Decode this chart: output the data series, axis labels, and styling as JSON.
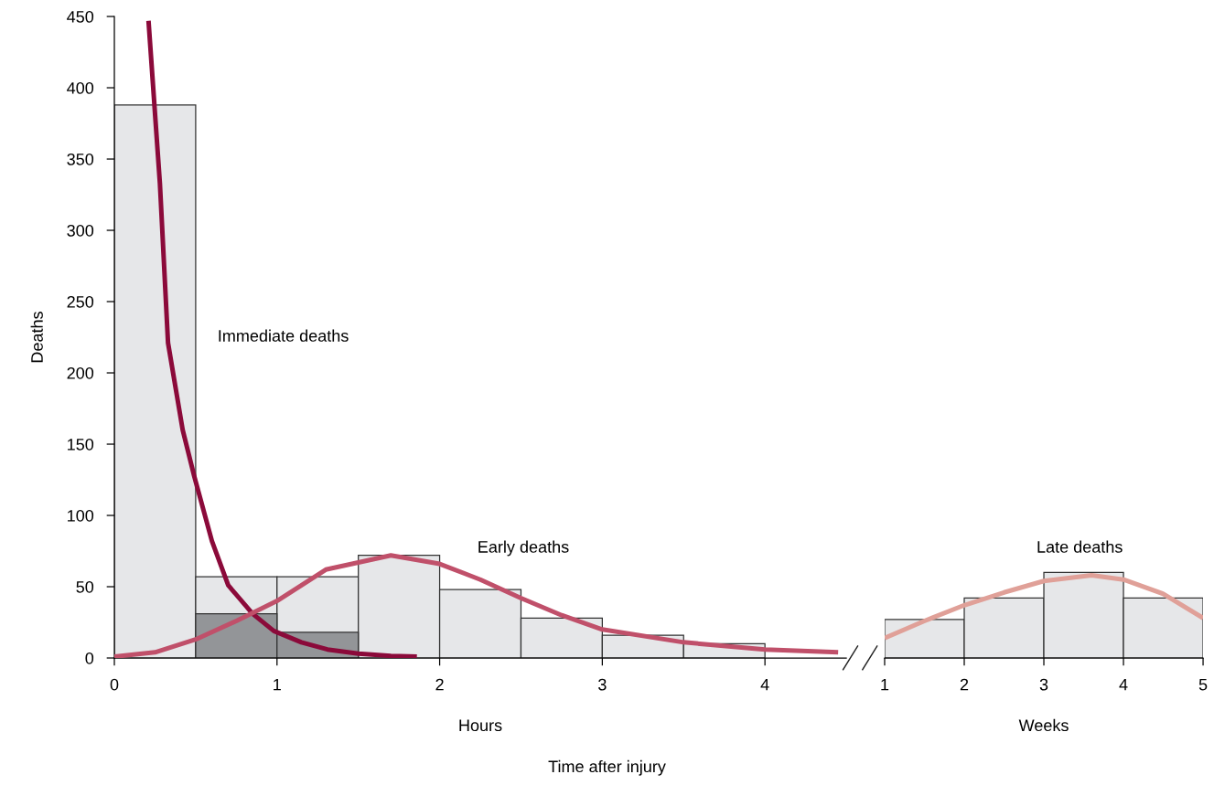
{
  "chart_data": [
    {
      "type": "histogram",
      "xlabel": "Hours",
      "ylabel": "Deaths",
      "bins": [
        0,
        0.5,
        1,
        1.5,
        2,
        2.5,
        3,
        3.5,
        4
      ],
      "series": [
        {
          "color": "#e6e7e9",
          "values": [
            388,
            57,
            57,
            72,
            48,
            28,
            16,
            10
          ]
        },
        {
          "color": "#939598",
          "values": [
            null,
            31,
            18,
            null,
            null,
            null,
            null,
            null
          ]
        },
        {
          "type": "line",
          "color": "#8b0a3a",
          "x": [
            0.21,
            0.28,
            0.33,
            0.42,
            0.49,
            0.6,
            0.7,
            0.85,
            0.98,
            1.15,
            1.31,
            1.5,
            1.7,
            1.86
          ],
          "values": [
            447,
            333,
            221,
            160,
            128,
            82,
            51,
            31,
            19,
            11,
            6,
            3,
            1.5,
            1
          ]
        },
        {
          "type": "line",
          "color": "#c0506a",
          "x": [
            0,
            0.25,
            0.5,
            0.75,
            1,
            1.3,
            1.7,
            2,
            2.25,
            2.5,
            2.75,
            3,
            3.5,
            4,
            4.45
          ],
          "values": [
            1,
            4,
            13,
            26,
            40,
            62,
            72,
            66,
            55,
            42,
            30,
            20,
            11,
            6,
            4
          ]
        }
      ],
      "xlim": [
        0,
        4.5
      ],
      "xticks": [
        0,
        1,
        2,
        3,
        4
      ],
      "ylim": [
        0,
        450
      ],
      "yticks": [
        0,
        50,
        100,
        150,
        200,
        250,
        300,
        350,
        400,
        450
      ],
      "annotations": [
        "Immediate deaths",
        "Early deaths",
        "Time after injury"
      ]
    },
    {
      "type": "histogram",
      "xlabel": "Weeks",
      "bins": [
        1,
        2,
        3,
        4,
        5
      ],
      "series": [
        {
          "color": "#e6e7e9",
          "values": [
            27,
            42,
            60,
            42
          ]
        },
        {
          "type": "line",
          "color": "#e0a098",
          "x": [
            1,
            1.5,
            2,
            2.5,
            3,
            3.6,
            4,
            4.5,
            5
          ],
          "values": [
            14,
            26,
            37,
            46,
            54,
            58,
            55,
            45,
            28
          ]
        }
      ],
      "xlim": [
        1,
        5
      ],
      "xticks": [
        1,
        2,
        3,
        4,
        5
      ],
      "ylim": [
        0,
        450
      ],
      "tick_labels": "x",
      "annotations": [
        "Late deaths"
      ]
    }
  ]
}
